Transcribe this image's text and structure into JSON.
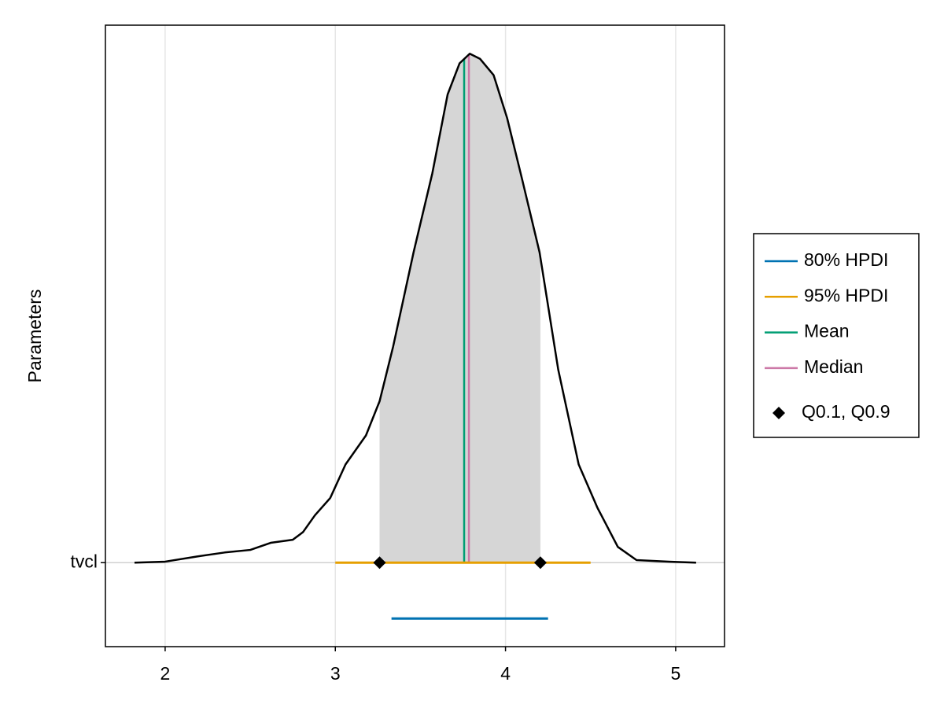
{
  "chart_data": {
    "type": "density",
    "ylabel": "Parameters",
    "categories": [
      "tvcl"
    ],
    "xlim": [
      1.649,
      5.287
    ],
    "xticks": [
      2,
      3,
      4,
      5
    ],
    "ylim": [
      -0.165,
      1.056
    ],
    "grid": true,
    "density": {
      "color": "#000000",
      "fill": "#d6d6d6",
      "x": [
        1.82,
        2.0,
        2.185,
        2.35,
        2.5,
        2.62,
        2.75,
        2.81,
        2.88,
        2.97,
        3.06,
        3.18,
        3.26,
        3.34,
        3.46,
        3.57,
        3.66,
        3.73,
        3.79,
        3.85,
        3.93,
        4.01,
        4.1,
        4.2,
        4.31,
        4.43,
        4.54,
        4.66,
        4.77,
        4.96,
        5.12
      ],
      "y": [
        0,
        0.002,
        0.012,
        0.02,
        0.025,
        0.039,
        0.045,
        0.06,
        0.093,
        0.127,
        0.193,
        0.25,
        0.317,
        0.425,
        0.61,
        0.765,
        0.92,
        0.981,
        1.0,
        0.99,
        0.958,
        0.873,
        0.75,
        0.61,
        0.379,
        0.193,
        0.108,
        0.031,
        0.005,
        0.002,
        0
      ]
    },
    "intervals": [
      {
        "name": "80% HPDI",
        "color": "#0072b2",
        "values": [
          3.33,
          4.25
        ]
      },
      {
        "name": "95% HPDI",
        "color": "#e69f00",
        "values": [
          3.0,
          4.5
        ]
      }
    ],
    "lines": [
      {
        "name": "Mean",
        "color": "#009e73",
        "value": 3.757
      },
      {
        "name": "Median",
        "color": "#cc79a7",
        "value": 3.785
      }
    ],
    "quantiles": {
      "name": "Q0.1, Q0.9",
      "color": "#000000",
      "values": [
        3.26,
        4.205
      ]
    }
  }
}
